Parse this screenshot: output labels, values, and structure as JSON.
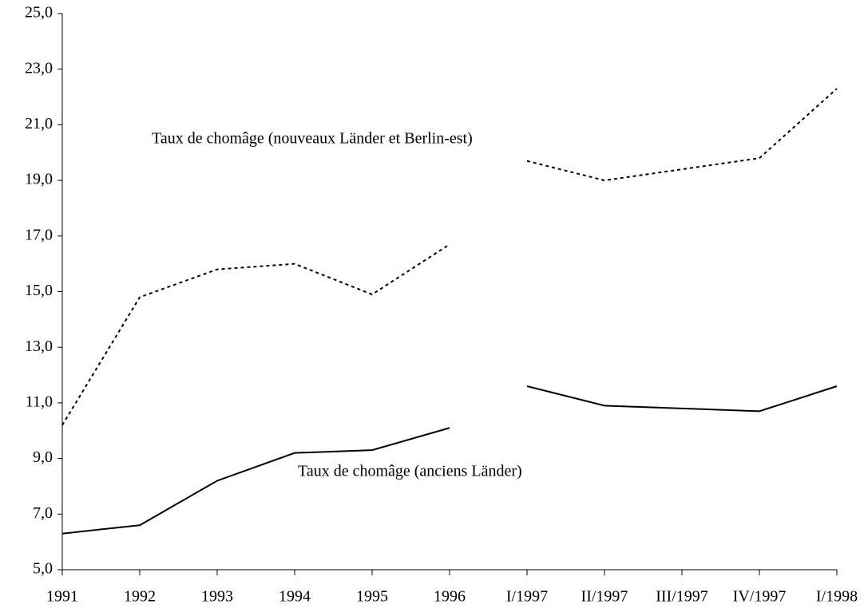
{
  "chart_data": {
    "type": "line",
    "categories": [
      "1991",
      "1992",
      "1993",
      "1994",
      "1995",
      "1996",
      "I/1997",
      "II/1997",
      "III/1997",
      "IV/1997",
      "I/1998"
    ],
    "line_breaks": [
      6
    ],
    "series": [
      {
        "name": "Taux de chomâge (nouveaux Länder et Berlin-est)",
        "color": "#000000",
        "dash": "dotted",
        "values": [
          10.2,
          14.8,
          15.8,
          16.0,
          14.9,
          16.7,
          19.7,
          19.0,
          19.4,
          19.8,
          22.3
        ]
      },
      {
        "name": "Taux de chomâge (anciens Länder)",
        "color": "#000000",
        "dash": "solid",
        "values": [
          6.3,
          6.6,
          8.2,
          9.2,
          9.3,
          10.1,
          11.6,
          10.9,
          10.8,
          10.7,
          11.6
        ]
      }
    ],
    "ylim": [
      5,
      25
    ],
    "yticks": [
      {
        "value": 5,
        "label": "5,0"
      },
      {
        "value": 7,
        "label": "7,0"
      },
      {
        "value": 9,
        "label": "9,0"
      },
      {
        "value": 11,
        "label": "11,0"
      },
      {
        "value": 13,
        "label": "13,0"
      },
      {
        "value": 15,
        "label": "15,0"
      },
      {
        "value": 17,
        "label": "17,0"
      },
      {
        "value": 19,
        "label": "19,0"
      },
      {
        "value": 21,
        "label": "21,0"
      },
      {
        "value": 23,
        "label": "23,0"
      },
      {
        "value": 25,
        "label": "25,0"
      }
    ],
    "grid": false
  }
}
